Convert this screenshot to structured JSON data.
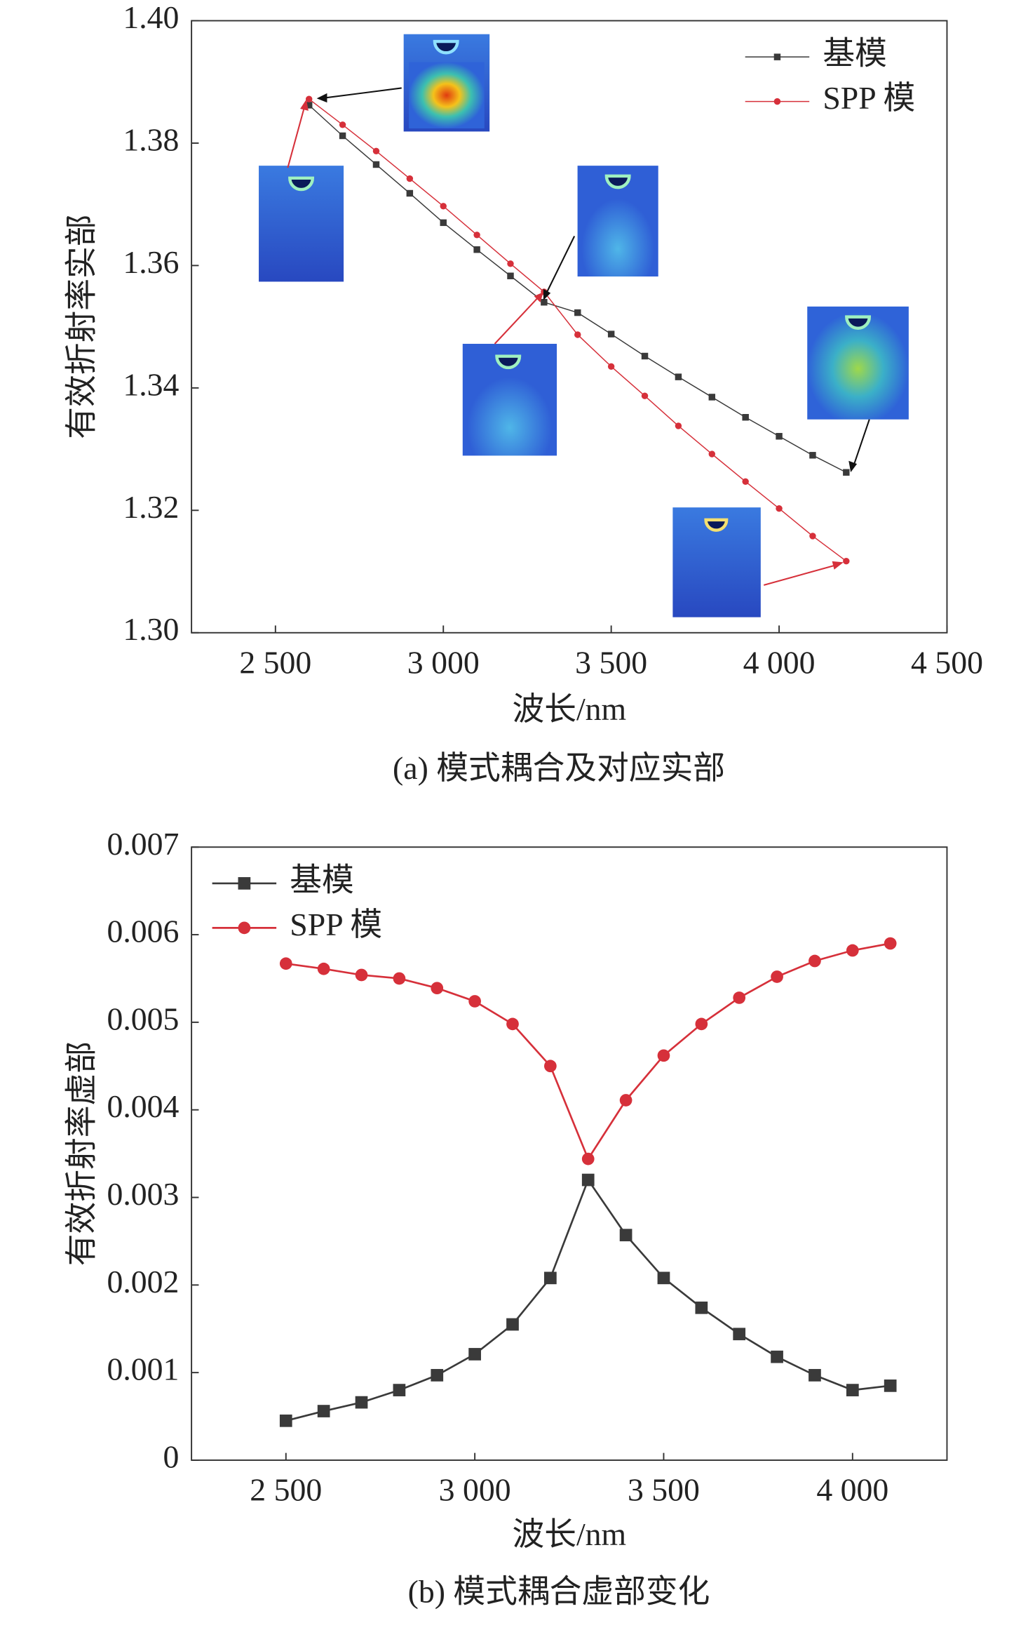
{
  "chart_data": [
    {
      "type": "line",
      "caption": "(a) 模式耦合及对应实部",
      "x_label": "波长/nm",
      "y_label": "有效折射率实部",
      "x": [
        2600,
        2700,
        2800,
        2900,
        3000,
        3100,
        3200,
        3300,
        3400,
        3500,
        3600,
        3700,
        3800,
        3900,
        4000,
        4100,
        4200
      ],
      "series": [
        {
          "name": "基模",
          "color": "#3a3a3a",
          "marker": "square",
          "values": [
            1.3862,
            1.3812,
            1.3765,
            1.3718,
            1.367,
            1.3626,
            1.3583,
            1.354,
            1.3523,
            1.3488,
            1.3452,
            1.3418,
            1.3385,
            1.3352,
            1.3321,
            1.329,
            1.3262
          ]
        },
        {
          "name": "SPP 模",
          "color": "#d6303a",
          "marker": "circle",
          "values": [
            1.3872,
            1.383,
            1.3787,
            1.3742,
            1.3697,
            1.365,
            1.3603,
            1.3557,
            1.3487,
            1.3435,
            1.3387,
            1.3338,
            1.3292,
            1.3247,
            1.3203,
            1.3158,
            1.3117
          ]
        }
      ],
      "xlim": [
        2250,
        4500
      ],
      "xticks": [
        {
          "value": 2500,
          "label": "2 500"
        },
        {
          "value": 3000,
          "label": "3 000"
        },
        {
          "value": 3500,
          "label": "3 500"
        },
        {
          "value": 4000,
          "label": "4 000"
        },
        {
          "value": 4500,
          "label": "4 500"
        }
      ],
      "ylim": [
        1.3,
        1.4
      ],
      "yticks": [
        {
          "value": 1.3,
          "label": "1.30"
        },
        1.32,
        1.34,
        1.36,
        1.38,
        {
          "value": 1.4,
          "label": "1.40"
        }
      ],
      "legend": "upper right"
    },
    {
      "type": "line",
      "caption": "(b) 模式耦合虚部变化",
      "x_label": "波长/nm",
      "y_label": "有效折射率虚部",
      "x": [
        2500,
        2600,
        2700,
        2800,
        2900,
        3000,
        3100,
        3200,
        3300,
        3400,
        3500,
        3600,
        3700,
        3800,
        3900,
        4000,
        4100
      ],
      "series": [
        {
          "name": "基模",
          "color": "#3a3a3a",
          "marker": "square",
          "values": [
            0.00045,
            0.00056,
            0.00066,
            0.0008,
            0.00097,
            0.00121,
            0.00155,
            0.00208,
            0.0032,
            0.00257,
            0.00208,
            0.00174,
            0.00144,
            0.00118,
            0.00097,
            0.0008,
            0.00085
          ]
        },
        {
          "name": "SPP 模",
          "color": "#d6303a",
          "marker": "circle",
          "values": [
            0.00567,
            0.00561,
            0.00554,
            0.0055,
            0.00539,
            0.00524,
            0.00498,
            0.0045,
            0.00344,
            0.00411,
            0.00462,
            0.00498,
            0.00528,
            0.00552,
            0.0057,
            0.00582,
            0.0059
          ]
        }
      ],
      "xlim": [
        2250,
        4250
      ],
      "xticks": [
        {
          "value": 2500,
          "label": "2 500"
        },
        {
          "value": 3000,
          "label": "3 000"
        },
        {
          "value": 3500,
          "label": "3 500"
        },
        {
          "value": 4000,
          "label": "4 000"
        }
      ],
      "ylim": [
        0,
        0.007
      ],
      "yticks": [
        0,
        0.001,
        0.002,
        0.003,
        0.004,
        0.005,
        0.006,
        0.007
      ],
      "legend": "upper left"
    }
  ]
}
